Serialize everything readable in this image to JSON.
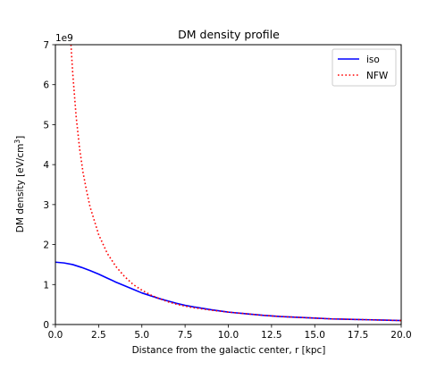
{
  "chart_data": {
    "type": "line",
    "title": "DM density profile",
    "xlabel": "Distance from the galactic center, r [kpc]",
    "ylabel": {
      "main": "DM density [eV/cm",
      "superscript": "3",
      "close": "]"
    },
    "y_multiplier": "1e9",
    "xlim": [
      0,
      20
    ],
    "ylim": [
      0,
      7
    ],
    "x_ticks": [
      "0.0",
      "2.5",
      "5.0",
      "7.5",
      "10.0",
      "12.5",
      "15.0",
      "17.5",
      "20.0"
    ],
    "y_ticks": [
      "0",
      "1",
      "2",
      "3",
      "4",
      "5",
      "6",
      "7"
    ],
    "grid": false,
    "legend_position": "upper right",
    "x": [
      0,
      0.5,
      1,
      1.5,
      2,
      2.5,
      3,
      3.5,
      4,
      4.5,
      5,
      5.5,
      6,
      6.5,
      7,
      7.5,
      8,
      9,
      10,
      11,
      12,
      13,
      14,
      15,
      16,
      17,
      18,
      19,
      20
    ],
    "series": [
      {
        "name": "iso",
        "color": "#0000ff",
        "style": "solid",
        "values": [
          1.56,
          1.54,
          1.5,
          1.43,
          1.35,
          1.26,
          1.16,
          1.06,
          0.97,
          0.88,
          0.79,
          0.72,
          0.65,
          0.59,
          0.53,
          0.48,
          0.44,
          0.37,
          0.31,
          0.27,
          0.23,
          0.2,
          0.18,
          0.16,
          0.14,
          0.13,
          0.12,
          0.11,
          0.1
        ]
      },
      {
        "name": "NFW",
        "color": "#ff0000",
        "style": "dotted",
        "x": [
          0.9,
          1,
          1.2,
          1.4,
          1.6,
          1.8,
          2,
          2.5,
          3,
          3.5,
          4,
          4.5,
          5,
          5.5,
          6,
          6.5,
          7,
          7.5,
          8,
          9,
          10,
          11,
          12,
          13,
          14,
          15,
          16,
          17,
          18,
          19,
          20
        ],
        "values": [
          7.0,
          6.3,
          5.2,
          4.4,
          3.8,
          3.35,
          2.95,
          2.25,
          1.78,
          1.45,
          1.2,
          1.0,
          0.86,
          0.74,
          0.65,
          0.57,
          0.51,
          0.46,
          0.42,
          0.36,
          0.31,
          0.27,
          0.23,
          0.2,
          0.18,
          0.16,
          0.14,
          0.13,
          0.12,
          0.11,
          0.1
        ]
      }
    ]
  }
}
